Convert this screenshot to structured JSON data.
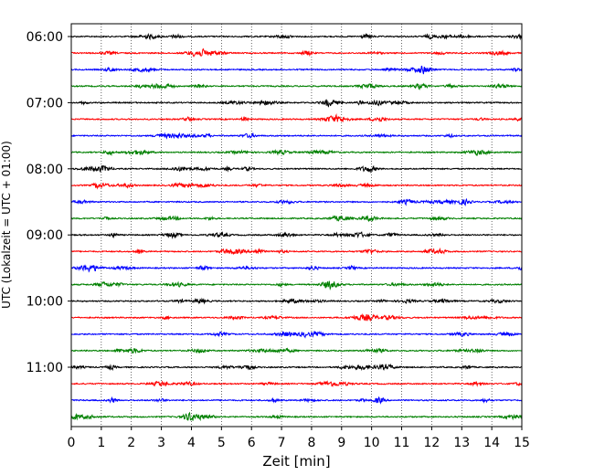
{
  "chart_data": {
    "type": "line",
    "title": "",
    "xlabel": "Zeit  [min]",
    "ylabel": "UTC (Lokalzeit = UTC + 01:00)",
    "xlim": [
      0,
      15
    ],
    "x_ticks": [
      0,
      1,
      2,
      3,
      4,
      5,
      6,
      7,
      8,
      9,
      10,
      11,
      12,
      13,
      14,
      15
    ],
    "y_tick_labels": [
      "06:00",
      "07:00",
      "08:00",
      "09:00",
      "10:00",
      "11:00"
    ],
    "grid": "vertical dotted lines at each minute",
    "trace_interval_minutes": 15,
    "trace_colors": [
      "#000000",
      "#ff0000",
      "#0000ff",
      "#008000"
    ],
    "series": [
      {
        "start": "06:00",
        "color": "#000000"
      },
      {
        "start": "06:15",
        "color": "#ff0000"
      },
      {
        "start": "06:30",
        "color": "#0000ff"
      },
      {
        "start": "06:45",
        "color": "#008000"
      },
      {
        "start": "07:00",
        "color": "#000000"
      },
      {
        "start": "07:15",
        "color": "#ff0000"
      },
      {
        "start": "07:30",
        "color": "#0000ff"
      },
      {
        "start": "07:45",
        "color": "#008000"
      },
      {
        "start": "08:00",
        "color": "#000000"
      },
      {
        "start": "08:15",
        "color": "#ff0000"
      },
      {
        "start": "08:30",
        "color": "#0000ff"
      },
      {
        "start": "08:45",
        "color": "#008000"
      },
      {
        "start": "09:00",
        "color": "#000000"
      },
      {
        "start": "09:15",
        "color": "#ff0000"
      },
      {
        "start": "09:30",
        "color": "#0000ff"
      },
      {
        "start": "09:45",
        "color": "#008000"
      },
      {
        "start": "10:00",
        "color": "#000000"
      },
      {
        "start": "10:15",
        "color": "#ff0000"
      },
      {
        "start": "10:30",
        "color": "#0000ff"
      },
      {
        "start": "10:45",
        "color": "#008000"
      },
      {
        "start": "11:00",
        "color": "#000000"
      },
      {
        "start": "11:15",
        "color": "#ff0000"
      },
      {
        "start": "11:30",
        "color": "#0000ff"
      },
      {
        "start": "11:45",
        "color": "#008000"
      }
    ]
  }
}
